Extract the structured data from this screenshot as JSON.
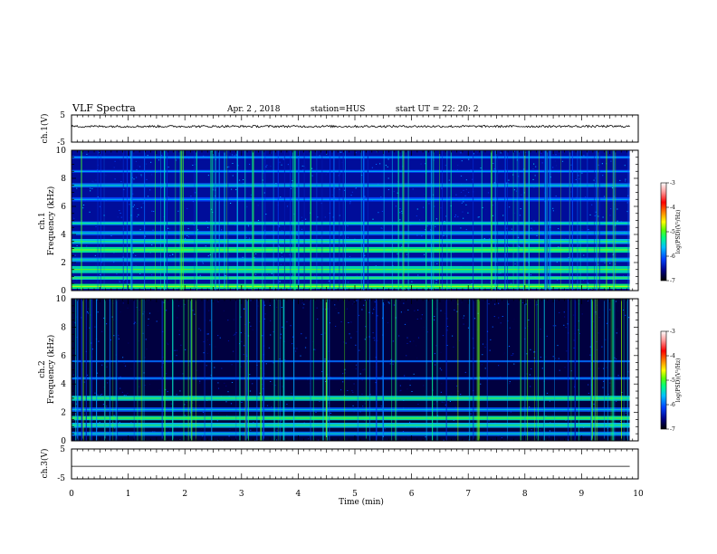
{
  "header": {
    "title": "VLF Spectra",
    "date": "Apr. 2  , 2018",
    "station": "station=HUS",
    "start_ut": "start  UT  =   22: 20: 2"
  },
  "chart_data": [
    {
      "type": "line",
      "name": "ch1-waveform",
      "ylabel": "ch.1(V)",
      "ylim": [
        -5,
        5
      ],
      "yticks": [
        "5",
        "-5"
      ],
      "xlim": [
        0,
        10
      ],
      "description_values": {
        "baseline_V": 0.8,
        "noise_amplitude_V": 0.4
      }
    },
    {
      "type": "heatmap",
      "name": "ch1-spectrogram",
      "ylabel": "ch.1\nFrequency (kHz)",
      "ylabel_lines": [
        "ch.1",
        "Frequency (kHz)"
      ],
      "ylim": [
        0,
        10
      ],
      "yticks": [
        "0",
        "2",
        "4",
        "6",
        "8",
        "10"
      ],
      "xlim": [
        0,
        9.85
      ],
      "colorbar": {
        "label": "log(PSD)(V²/Hz)",
        "range": [
          -7,
          -3
        ],
        "ticks": [
          "-3",
          "-4",
          "-5",
          "-6",
          "-7"
        ]
      },
      "bands_kHz": [
        {
          "f": 0.3,
          "w": 0.35,
          "v": -5.2
        },
        {
          "f": 0.9,
          "w": 0.25,
          "v": -5.5
        },
        {
          "f": 1.5,
          "w": 0.5,
          "v": -5.4
        },
        {
          "f": 2.2,
          "w": 0.3,
          "v": -5.8
        },
        {
          "f": 2.9,
          "w": 0.4,
          "v": -5.3
        },
        {
          "f": 3.5,
          "w": 0.35,
          "v": -5.6
        },
        {
          "f": 4.1,
          "w": 0.3,
          "v": -5.9
        },
        {
          "f": 4.8,
          "w": 0.25,
          "v": -5.7
        },
        {
          "f": 6.5,
          "w": 0.3,
          "v": -6.1
        },
        {
          "f": 7.5,
          "w": 0.3,
          "v": -5.9
        },
        {
          "f": 8.5,
          "w": 0.2,
          "v": -6.1
        },
        {
          "f": 9.5,
          "w": 0.2,
          "v": -6.1
        }
      ],
      "upper_background_v": -6.5
    },
    {
      "type": "heatmap",
      "name": "ch2-spectrogram",
      "ylabel": "ch.2\nFrequency (kHz)",
      "ylabel_lines": [
        "ch.2",
        "Frequency (kHz)"
      ],
      "ylim": [
        0,
        10
      ],
      "yticks": [
        "0",
        "2",
        "4",
        "6",
        "8",
        "10"
      ],
      "xlim": [
        0,
        9.85
      ],
      "colorbar": {
        "label": "log(PSD)(V²/Hz)",
        "range": [
          -7,
          -3
        ],
        "ticks": [
          "-3",
          "-4",
          "-5",
          "-6",
          "-7"
        ]
      },
      "bands_kHz": [
        {
          "f": 0.5,
          "w": 0.3,
          "v": -5.9
        },
        {
          "f": 1.1,
          "w": 0.35,
          "v": -5.6
        },
        {
          "f": 1.6,
          "w": 0.3,
          "v": -5.4
        },
        {
          "f": 2.2,
          "w": 0.3,
          "v": -6.0
        },
        {
          "f": 3.0,
          "w": 0.35,
          "v": -5.5
        },
        {
          "f": 4.4,
          "w": 0.2,
          "v": -6.2
        },
        {
          "f": 5.6,
          "w": 0.15,
          "v": -6.3
        }
      ],
      "upper_background_v": -6.8
    },
    {
      "type": "line",
      "name": "ch3-waveform",
      "ylabel": "ch.3(V)",
      "ylim": [
        -5,
        5
      ],
      "yticks": [
        "5",
        "-5"
      ],
      "xlim": [
        0,
        10
      ],
      "description_values": {
        "baseline_V": -0.8,
        "noise_amplitude_V": 0.0
      }
    }
  ],
  "xaxis": {
    "label": "Time  (min)",
    "ticks": [
      "0",
      "1",
      "2",
      "3",
      "4",
      "5",
      "6",
      "7",
      "8",
      "9",
      "10"
    ],
    "range": [
      0,
      10
    ]
  },
  "colors": {
    "background": "#ffffff",
    "axes": "#000000",
    "colormap": [
      "#000000",
      "#000030",
      "#0000a0",
      "#0060ff",
      "#00c8ff",
      "#00ff80",
      "#80ff00",
      "#ffff00",
      "#ff8000",
      "#ff0000",
      "#ffffff"
    ]
  }
}
